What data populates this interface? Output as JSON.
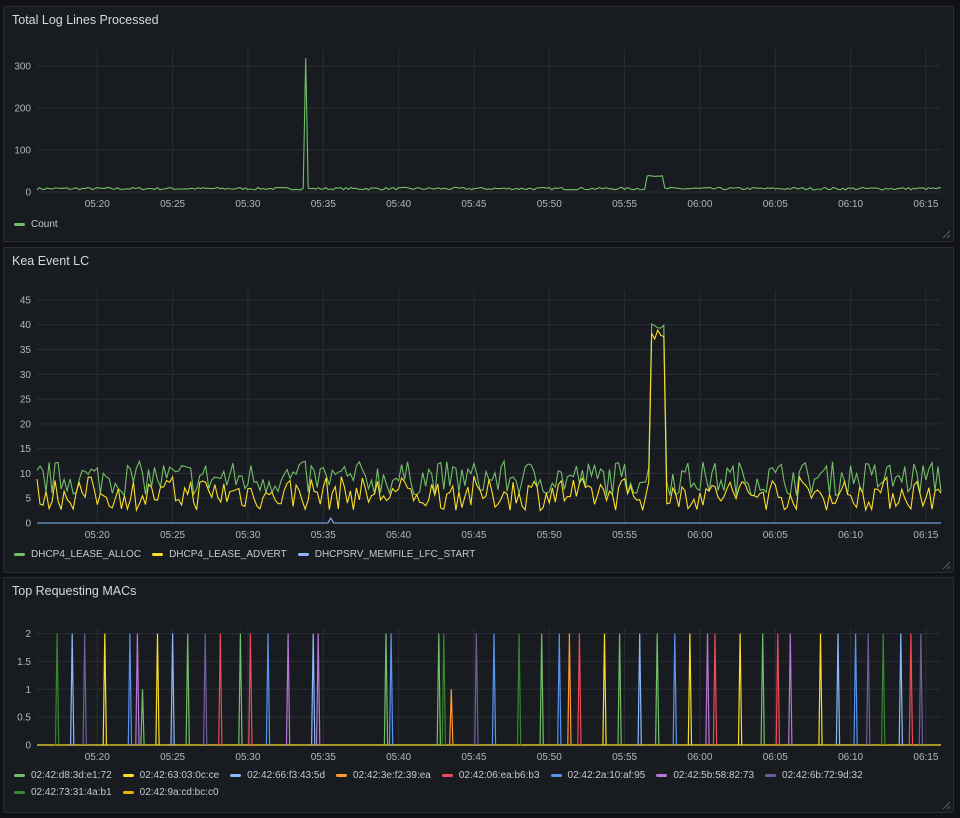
{
  "colors": {
    "alloc": "#73bf69",
    "advert": "#fade2a",
    "lfc": "#8ab8ff",
    "mac1": "#73bf69",
    "mac2": "#fade2a",
    "mac3": "#8ab8ff",
    "mac4": "#ff9830",
    "mac5": "#f2495c",
    "mac6": "#5794f2",
    "mac7": "#b877d9",
    "mac8": "#705da0",
    "mac9": "#37872d",
    "mac10": "#e0b400"
  },
  "panels": {
    "p1": {
      "title": "Total Log Lines Processed",
      "legend": [
        "Count"
      ]
    },
    "p2": {
      "title": "Kea Event LC",
      "legend": [
        "DHCP4_LEASE_ALLOC",
        "DHCP4_LEASE_ADVERT",
        "DHCPSRV_MEMFILE_LFC_START"
      ]
    },
    "p3": {
      "title": "Top Requesting MACs",
      "legend": [
        "02:42:d8:3d:e1:72",
        "02:42:63:03:0c:ce",
        "02:42:66:f3:43:5d",
        "02:42:3e:f2:39:ea",
        "02:42:06:ea:b6:b3",
        "02:42:2a:10:af:95",
        "02:42:5b:58:82:73",
        "02:42:6b:72:9d:32",
        "02:42:73:31:4a:b1",
        "02:42:9a:cd:bc:c0"
      ]
    }
  },
  "chart_data": [
    {
      "type": "line",
      "title": "Total Log Lines Processed",
      "x_ticks": [
        "05:20",
        "05:25",
        "05:30",
        "05:35",
        "05:40",
        "05:45",
        "05:50",
        "05:55",
        "06:00",
        "06:05",
        "06:10",
        "06:15"
      ],
      "x_range": [
        "05:16",
        "06:16"
      ],
      "y_ticks": [
        0,
        100,
        200,
        300
      ],
      "ylim": [
        0,
        340
      ],
      "series": [
        {
          "name": "Count",
          "color_key": "mac1",
          "baseline": 8,
          "noise": 6,
          "spikes": [
            {
              "t": "05:33:50",
              "value": 318
            }
          ],
          "plateaus": [
            {
              "from": "05:56:30",
              "to": "05:57:30",
              "value": 38
            }
          ]
        }
      ]
    },
    {
      "type": "line",
      "title": "Kea Event LC",
      "x_ticks": [
        "05:20",
        "05:25",
        "05:30",
        "05:35",
        "05:40",
        "05:45",
        "05:50",
        "05:55",
        "06:00",
        "06:05",
        "06:10",
        "06:15"
      ],
      "x_range": [
        "05:16",
        "06:16"
      ],
      "y_ticks": [
        0,
        5,
        10,
        15,
        20,
        25,
        30,
        35,
        40,
        45
      ],
      "ylim": [
        0,
        47
      ],
      "series": [
        {
          "name": "DHCP4_LEASE_ALLOC",
          "color_key": "alloc",
          "base": 9,
          "noise": 7,
          "plateau": {
            "from": "05:56:40",
            "to": "05:57:40",
            "value": 40
          }
        },
        {
          "name": "DHCP4_LEASE_ADVERT",
          "color_key": "advert",
          "base": 6,
          "noise": 7,
          "plateau": {
            "from": "05:56:40",
            "to": "05:57:40",
            "value": 38
          }
        },
        {
          "name": "DHCPSRV_MEMFILE_LFC_START",
          "color_key": "lfc",
          "base": 0,
          "noise": 0,
          "spikes": [
            {
              "t": "05:35:30",
              "value": 1
            }
          ]
        }
      ]
    },
    {
      "type": "line",
      "title": "Top Requesting MACs",
      "x_ticks": [
        "05:20",
        "05:25",
        "05:30",
        "05:35",
        "05:40",
        "05:45",
        "05:50",
        "05:55",
        "06:00",
        "06:05",
        "06:10",
        "06:15"
      ],
      "x_range": [
        "05:16",
        "06:16"
      ],
      "y_ticks": [
        0,
        0.5,
        1,
        1.5,
        2
      ],
      "ylim": [
        0,
        2.1
      ],
      "spikes": [
        {
          "t": "05:17:20",
          "v": 2,
          "c": "mac9"
        },
        {
          "t": "05:18:20",
          "v": 2,
          "c": "mac3"
        },
        {
          "t": "05:19:10",
          "v": 2,
          "c": "mac8"
        },
        {
          "t": "05:20:30",
          "v": 2,
          "c": "mac2"
        },
        {
          "t": "05:22:10",
          "v": 2,
          "c": "mac6"
        },
        {
          "t": "05:22:40",
          "v": 2,
          "c": "mac7"
        },
        {
          "t": "05:23:00",
          "v": 1,
          "c": "mac1"
        },
        {
          "t": "05:24:00",
          "v": 2,
          "c": "mac2"
        },
        {
          "t": "05:25:00",
          "v": 2,
          "c": "mac3"
        },
        {
          "t": "05:26:00",
          "v": 2,
          "c": "mac1"
        },
        {
          "t": "05:27:10",
          "v": 2,
          "c": "mac8"
        },
        {
          "t": "05:28:10",
          "v": 2,
          "c": "mac5"
        },
        {
          "t": "05:29:30",
          "v": 2,
          "c": "mac1"
        },
        {
          "t": "05:30:10",
          "v": 2,
          "c": "mac5"
        },
        {
          "t": "05:31:20",
          "v": 2,
          "c": "mac6"
        },
        {
          "t": "05:32:40",
          "v": 2,
          "c": "mac7"
        },
        {
          "t": "05:34:20",
          "v": 2,
          "c": "mac3"
        },
        {
          "t": "05:34:40",
          "v": 2,
          "c": "mac7"
        },
        {
          "t": "05:39:10",
          "v": 2,
          "c": "mac1"
        },
        {
          "t": "05:39:30",
          "v": 2,
          "c": "mac6"
        },
        {
          "t": "05:42:40",
          "v": 2,
          "c": "mac1"
        },
        {
          "t": "05:43:00",
          "v": 2,
          "c": "mac9"
        },
        {
          "t": "05:43:30",
          "v": 1,
          "c": "mac4"
        },
        {
          "t": "05:45:10",
          "v": 2,
          "c": "mac8"
        },
        {
          "t": "05:46:20",
          "v": 2,
          "c": "mac6"
        },
        {
          "t": "05:48:00",
          "v": 2,
          "c": "mac9"
        },
        {
          "t": "05:49:30",
          "v": 2,
          "c": "mac1"
        },
        {
          "t": "05:50:40",
          "v": 2,
          "c": "mac6"
        },
        {
          "t": "05:51:20",
          "v": 2,
          "c": "mac4"
        },
        {
          "t": "05:52:00",
          "v": 2,
          "c": "mac5"
        },
        {
          "t": "05:53:40",
          "v": 2,
          "c": "mac2"
        },
        {
          "t": "05:54:40",
          "v": 2,
          "c": "mac1"
        },
        {
          "t": "05:56:00",
          "v": 2,
          "c": "mac3"
        },
        {
          "t": "05:57:10",
          "v": 2,
          "c": "mac1"
        },
        {
          "t": "05:58:20",
          "v": 2,
          "c": "mac6"
        },
        {
          "t": "05:59:20",
          "v": 2,
          "c": "mac2"
        },
        {
          "t": "06:00:30",
          "v": 2,
          "c": "mac7"
        },
        {
          "t": "06:01:00",
          "v": 2,
          "c": "mac5"
        },
        {
          "t": "06:02:40",
          "v": 2,
          "c": "mac2"
        },
        {
          "t": "06:04:10",
          "v": 2,
          "c": "mac1"
        },
        {
          "t": "06:05:10",
          "v": 2,
          "c": "mac5"
        },
        {
          "t": "06:06:00",
          "v": 2,
          "c": "mac7"
        },
        {
          "t": "06:08:00",
          "v": 2,
          "c": "mac2"
        },
        {
          "t": "06:09:10",
          "v": 2,
          "c": "mac3"
        },
        {
          "t": "06:10:20",
          "v": 2,
          "c": "mac6"
        },
        {
          "t": "06:11:10",
          "v": 2,
          "c": "mac8"
        },
        {
          "t": "06:12:10",
          "v": 2,
          "c": "mac9"
        },
        {
          "t": "06:13:20",
          "v": 2,
          "c": "mac3"
        },
        {
          "t": "06:14:00",
          "v": 2,
          "c": "mac5"
        },
        {
          "t": "06:14:40",
          "v": 2,
          "c": "mac8"
        }
      ]
    }
  ]
}
